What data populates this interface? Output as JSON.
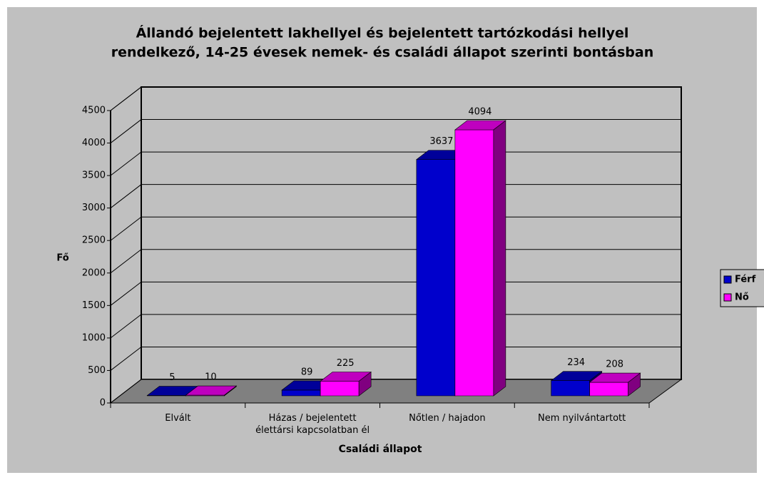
{
  "chart_data": {
    "type": "bar3d",
    "title": [
      "Állandó bejelentett lakhellyel és bejelentett tartózkodási hellyel",
      "rendelkező, 14-25 évesek nemek- és családi állapot szerinti bontásban"
    ],
    "x_label": "Családi állapot",
    "y_label": "Fő",
    "categories": [
      "Elvált",
      "Házas / bejelentett élettársi kapcsolatban él",
      "Nőtlen / hajadon",
      "Nem nyilvántartott"
    ],
    "series": [
      {
        "name": "Férf",
        "color": "#0000cc",
        "values": [
          5,
          89,
          3637,
          234
        ]
      },
      {
        "name": "Nő",
        "color": "#ff00ff",
        "values": [
          10,
          225,
          4094,
          208
        ]
      }
    ],
    "ylim": [
      0,
      4500
    ],
    "yticks": [
      0,
      500,
      1000,
      1500,
      2000,
      2500,
      3000,
      3500,
      4000,
      4500
    ],
    "grid": true,
    "legend": "right"
  }
}
